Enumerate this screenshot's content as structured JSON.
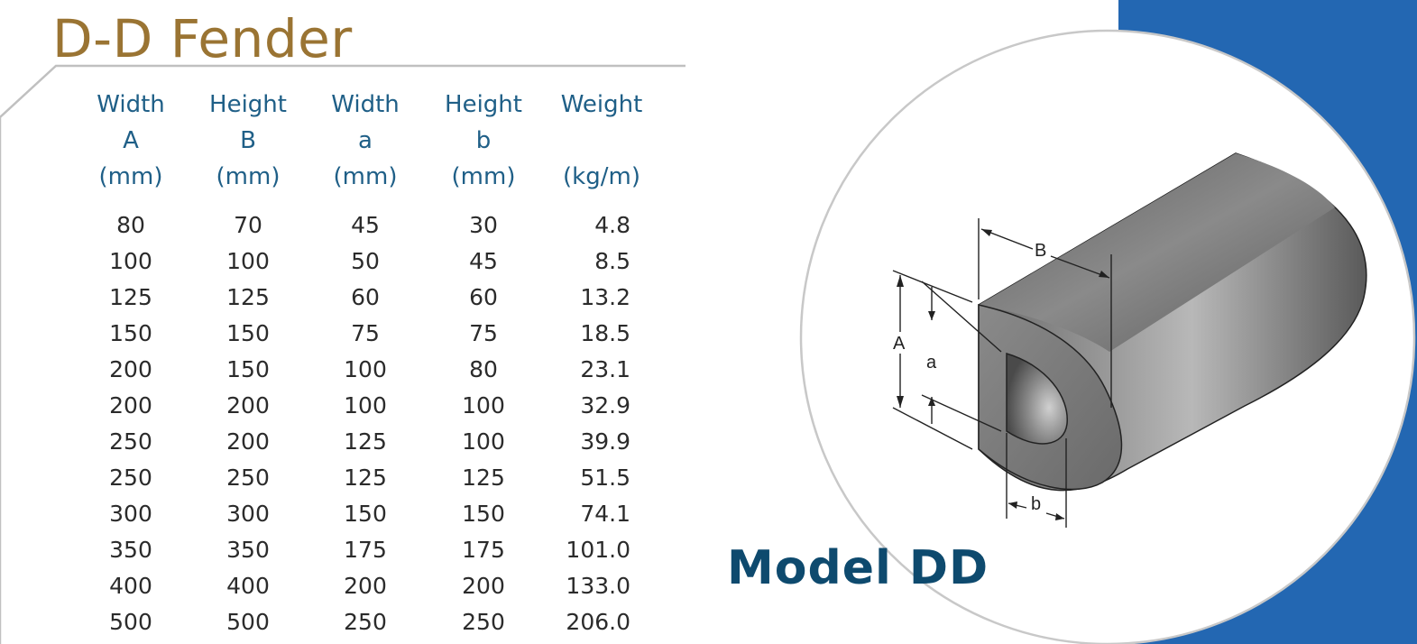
{
  "title": "D-D Fender",
  "model_label": "Model DD",
  "colors": {
    "title": "#9a7433",
    "header": "#1f5f87",
    "body_text": "#2b2b2b",
    "model_label": "#0e4a6e",
    "blue_band": "#2367b2",
    "frame_line": "#c0c0c0"
  },
  "table": {
    "columns": [
      {
        "line1": "Width",
        "line2": "A",
        "line3": "(mm)"
      },
      {
        "line1": "Height",
        "line2": "B",
        "line3": "(mm)"
      },
      {
        "line1": "Width",
        "line2": "a",
        "line3": "(mm)"
      },
      {
        "line1": "Height",
        "line2": "b",
        "line3": "(mm)"
      },
      {
        "line1": "Weight",
        "line2": "",
        "line3": "(kg/m)"
      }
    ],
    "rows": [
      [
        "80",
        "70",
        "45",
        "30",
        "4.8"
      ],
      [
        "100",
        "100",
        "50",
        "45",
        "8.5"
      ],
      [
        "125",
        "125",
        "60",
        "60",
        "13.2"
      ],
      [
        "150",
        "150",
        "75",
        "75",
        "18.5"
      ],
      [
        "200",
        "150",
        "100",
        "80",
        "23.1"
      ],
      [
        "200",
        "200",
        "100",
        "100",
        "32.9"
      ],
      [
        "250",
        "200",
        "125",
        "100",
        "39.9"
      ],
      [
        "250",
        "250",
        "125",
        "125",
        "51.5"
      ],
      [
        "300",
        "300",
        "150",
        "150",
        "74.1"
      ],
      [
        "350",
        "350",
        "175",
        "175",
        "101.0"
      ],
      [
        "400",
        "400",
        "200",
        "200",
        "133.0"
      ],
      [
        "500",
        "500",
        "250",
        "250",
        "206.0"
      ]
    ]
  },
  "diagram": {
    "labels": {
      "A": "A",
      "B": "B",
      "a": "a",
      "b": "b"
    }
  }
}
